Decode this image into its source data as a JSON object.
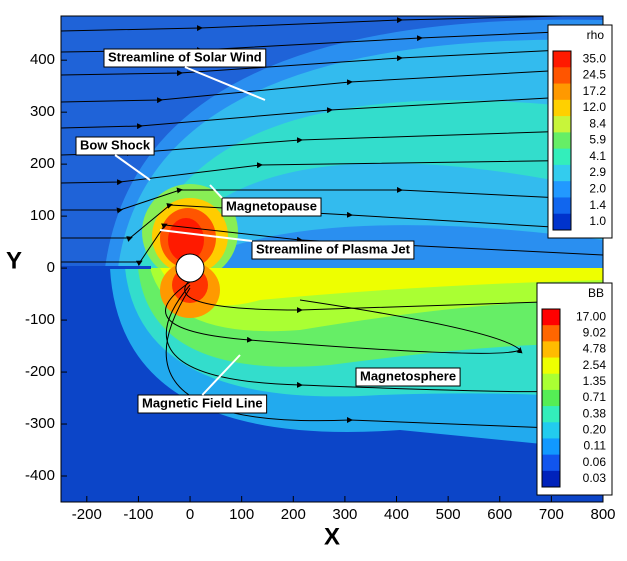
{
  "chart_data": {
    "type": "contour",
    "xlabel": "X",
    "ylabel": "Y",
    "xlim": [
      -250,
      800
    ],
    "ylim": [
      -450,
      485
    ],
    "xticks": [
      -200,
      -100,
      0,
      100,
      200,
      300,
      400,
      500,
      600,
      700,
      800
    ],
    "yticks": [
      -400,
      -300,
      -200,
      -100,
      0,
      100,
      200,
      300,
      400
    ],
    "annotations": [
      "Streamline of Solar Wind",
      "Bow Shock",
      "Magnetopause",
      "Streamline of Plasma Jet",
      "Magnetosphere",
      "Magnetic Field Line"
    ],
    "colorbars": [
      {
        "title": "rho",
        "levels": [
          {
            "value": 35,
            "label": "35.0"
          },
          {
            "value": 24.5,
            "label": "24.5"
          },
          {
            "value": 17.2,
            "label": "17.2"
          },
          {
            "value": 12,
            "label": "12.0"
          },
          {
            "value": 8.4,
            "label": "8.4"
          },
          {
            "value": 5.9,
            "label": "5.9"
          },
          {
            "value": 4.1,
            "label": "4.1"
          },
          {
            "value": 2.9,
            "label": "2.9"
          },
          {
            "value": 2,
            "label": "2.0"
          },
          {
            "value": 1.4,
            "label": "1.4"
          },
          {
            "value": 1,
            "label": "1.0"
          }
        ],
        "colors": [
          "#ff1a00",
          "#ff5500",
          "#ff9900",
          "#ffd000",
          "#c8f53a",
          "#66ee66",
          "#33eebb",
          "#33ccee",
          "#2299ff",
          "#1166ee",
          "#0033cc"
        ]
      },
      {
        "title": "BB",
        "levels": [
          {
            "value": 17,
            "label": "17.00"
          },
          {
            "value": 9.02,
            "label": "9.02"
          },
          {
            "value": 4.78,
            "label": "4.78"
          },
          {
            "value": 2.54,
            "label": "2.54"
          },
          {
            "value": 1.35,
            "label": "1.35"
          },
          {
            "value": 0.71,
            "label": "0.71"
          },
          {
            "value": 0.38,
            "label": "0.38"
          },
          {
            "value": 0.2,
            "label": "0.20"
          },
          {
            "value": 0.11,
            "label": "0.11"
          },
          {
            "value": 0.06,
            "label": "0.06"
          },
          {
            "value": 0.03,
            "label": "0.03"
          }
        ],
        "colors": [
          "#ff0000",
          "#ff6600",
          "#ffbb00",
          "#eeff00",
          "#aaff33",
          "#55ee55",
          "#33eebb",
          "#22ccee",
          "#1199ff",
          "#1155ee",
          "#0022bb"
        ]
      }
    ]
  }
}
